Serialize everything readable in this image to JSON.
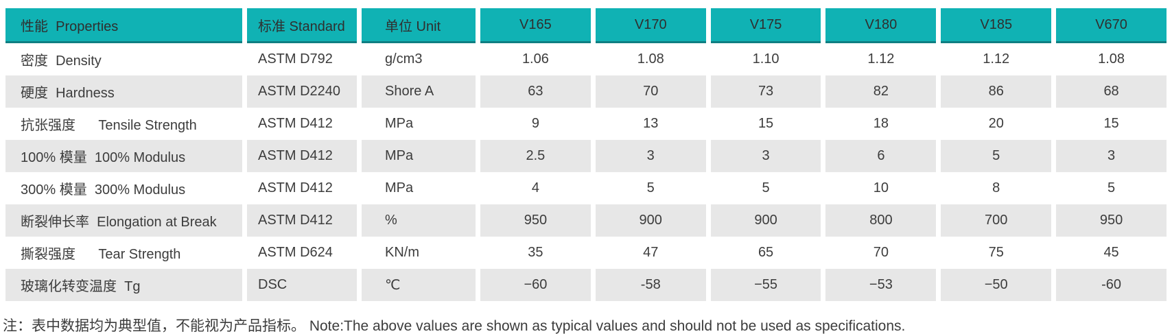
{
  "colors": {
    "header_bg": "#10b2b4",
    "header_border": "#0f7e82",
    "row_alt_bg": "#e7e7e7",
    "row_bg": "#ffffff",
    "text": "#3c3c3c"
  },
  "table": {
    "headers": [
      "性能  Properties",
      "标准 Standard",
      "单位 Unit",
      "V165",
      "V170",
      "V175",
      "V180",
      "V185",
      "V670"
    ],
    "rows": [
      {
        "property": "密度  Density",
        "standard": "ASTM D792",
        "unit": "g/cm3",
        "values": [
          "1.06",
          "1.08",
          "1.10",
          "1.12",
          "1.12",
          "1.08"
        ]
      },
      {
        "property": "硬度  Hardness",
        "standard": "ASTM D2240",
        "unit": "Shore A",
        "values": [
          "63",
          "70",
          "73",
          "82",
          "86",
          "68"
        ]
      },
      {
        "property": "抗张强度      Tensile Strength",
        "standard": "ASTM D412",
        "unit": "MPa",
        "values": [
          "9",
          "13",
          "15",
          "18",
          "20",
          "15"
        ]
      },
      {
        "property": "100% 模量  100% Modulus",
        "standard": "ASTM D412",
        "unit": "MPa",
        "values": [
          "2.5",
          "3",
          "3",
          "6",
          "5",
          "3"
        ]
      },
      {
        "property": "300% 模量  300% Modulus",
        "standard": "ASTM D412",
        "unit": "MPa",
        "values": [
          "4",
          "5",
          "5",
          "10",
          "8",
          "5"
        ]
      },
      {
        "property": "断裂伸长率  Elongation at Break",
        "standard": "ASTM D412",
        "unit": "%",
        "values": [
          "950",
          "900",
          "900",
          "800",
          "700",
          "950"
        ]
      },
      {
        "property": "撕裂强度      Tear Strength",
        "standard": "ASTM D624",
        "unit": "KN/m",
        "values": [
          "35",
          "47",
          "65",
          "70",
          "75",
          "45"
        ]
      },
      {
        "property": "玻璃化转变温度  Tg",
        "standard": "DSC",
        "unit": "℃",
        "values": [
          "−60",
          "-58",
          "−55",
          "−53",
          "−50",
          "-60"
        ]
      }
    ]
  },
  "note": "注：表中数据均为典型值，不能视为产品指标。 Note:The above values are shown as typical values and should not be used as specifications."
}
